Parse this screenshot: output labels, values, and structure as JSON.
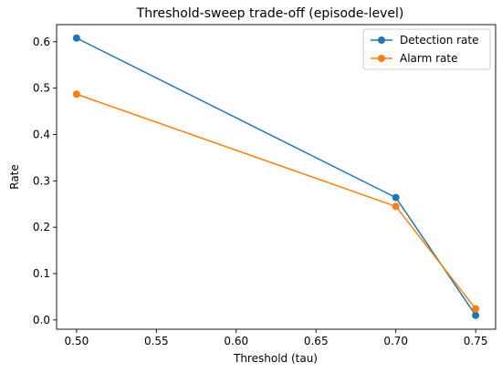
{
  "chart_data": {
    "type": "line",
    "title": "Threshold-sweep trade-off (episode-level)",
    "xlabel": "Threshold (tau)",
    "ylabel": "Rate",
    "x": [
      0.5,
      0.7,
      0.75
    ],
    "xlim": [
      0.4875,
      0.7625
    ],
    "ylim": [
      -0.02,
      0.637
    ],
    "xticks": [
      0.5,
      0.55,
      0.6,
      0.65,
      0.7,
      0.75
    ],
    "xtick_labels": [
      "0.50",
      "0.55",
      "0.60",
      "0.65",
      "0.70",
      "0.75"
    ],
    "yticks": [
      0.0,
      0.1,
      0.2,
      0.3,
      0.4,
      0.5,
      0.6
    ],
    "ytick_labels": [
      "0.0",
      "0.1",
      "0.2",
      "0.3",
      "0.4",
      "0.5",
      "0.6"
    ],
    "grid": false,
    "legend_position": "top-right",
    "series": [
      {
        "name": "Detection rate",
        "color": "#1f77b4",
        "marker": "circle",
        "values": [
          0.608,
          0.264,
          0.01
        ]
      },
      {
        "name": "Alarm rate",
        "color": "#ff7f0e",
        "marker": "circle",
        "values": [
          0.487,
          0.245,
          0.024
        ]
      }
    ]
  }
}
